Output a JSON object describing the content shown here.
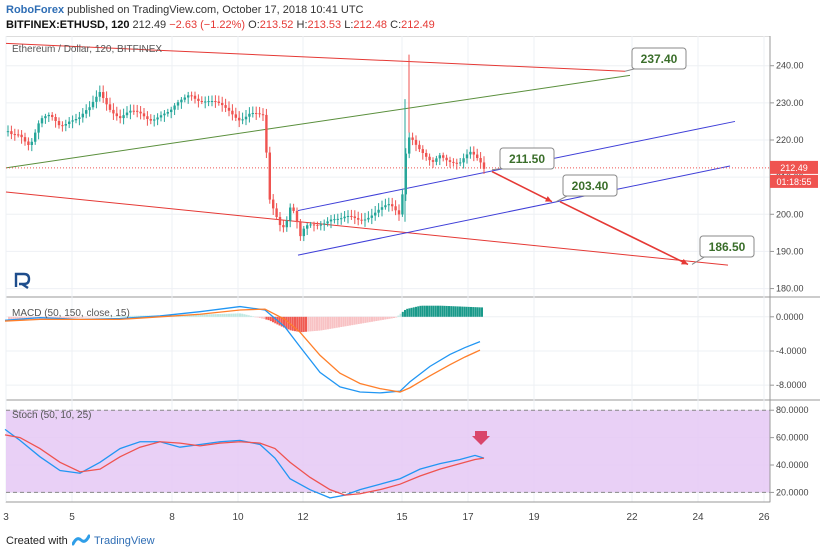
{
  "header": {
    "brand": "RoboForex",
    "published": "published on TradingView.com, October 17, 2018 10:41 UTC",
    "symbol": "BITFINEX:ETHUSD, 120",
    "last": "212.49",
    "change": "−2.63 (−1.22%)",
    "o_label": "O:",
    "o": "213.52",
    "h_label": "H:",
    "h": "213.53",
    "l_label": "L:",
    "l": "212.48",
    "c_label": "C:",
    "c": "212.49"
  },
  "footer": {
    "created_with": "Created with",
    "tradingview": "TradingView"
  },
  "colors": {
    "bull": "#26a69a",
    "bear": "#ef5350",
    "channel": "#3f3fd8",
    "resistance": "#e53935",
    "support_green": "#5a8f3c",
    "macd": "#2196f3",
    "signal": "#ff7f2a",
    "stoch_bg": "#e5c8f5"
  },
  "chart_data": [
    {
      "type": "candlestick",
      "title": "Ethereum / Dollar, 120, BITFINEX",
      "ylim": [
        178,
        248
      ],
      "y_ticks": [
        "240.00",
        "230.00",
        "220.00",
        "210.00",
        "200.00",
        "190.00",
        "180.00"
      ],
      "y_tick_values": [
        240,
        230,
        220,
        210,
        200,
        190,
        180
      ],
      "x_ticks": [
        "3",
        "5",
        "8",
        "10",
        "12",
        "15",
        "17",
        "19",
        "22",
        "24",
        "26"
      ],
      "current_price": "212.49",
      "countdown": "01:18:55",
      "close_path": [
        [
          0,
          224
        ],
        [
          10,
          221
        ],
        [
          20,
          222
        ],
        [
          30,
          219
        ],
        [
          40,
          225
        ],
        [
          50,
          226
        ],
        [
          60,
          224
        ],
        [
          70,
          226
        ],
        [
          80,
          226
        ],
        [
          90,
          228
        ],
        [
          100,
          233
        ],
        [
          110,
          229
        ],
        [
          120,
          226
        ],
        [
          130,
          227
        ],
        [
          140,
          227
        ],
        [
          150,
          226
        ],
        [
          160,
          227
        ],
        [
          170,
          227
        ],
        [
          180,
          230
        ],
        [
          190,
          233
        ],
        [
          200,
          231
        ],
        [
          210,
          230
        ],
        [
          220,
          229
        ],
        [
          230,
          228
        ],
        [
          240,
          226
        ],
        [
          250,
          227
        ],
        [
          260,
          226
        ],
        [
          265,
          226
        ],
        [
          268,
          205
        ],
        [
          275,
          201
        ],
        [
          280,
          198
        ],
        [
          285,
          197
        ],
        [
          290,
          202
        ],
        [
          295,
          200
        ],
        [
          300,
          193
        ],
        [
          305,
          196
        ],
        [
          310,
          197
        ],
        [
          320,
          198
        ],
        [
          330,
          199
        ],
        [
          340,
          198
        ],
        [
          350,
          199
        ],
        [
          360,
          199
        ],
        [
          370,
          200
        ],
        [
          380,
          201
        ],
        [
          390,
          202
        ],
        [
          400,
          200
        ],
        [
          404,
          210
        ],
        [
          407,
          222
        ],
        [
          412,
          221
        ],
        [
          418,
          218
        ],
        [
          425,
          215
        ],
        [
          432,
          213
        ],
        [
          440,
          216
        ],
        [
          450,
          215
        ],
        [
          460,
          214
        ],
        [
          470,
          216
        ],
        [
          480,
          214
        ],
        [
          484,
          212.5
        ]
      ],
      "annotations": [
        {
          "label": "237.40",
          "value": 237.4
        },
        {
          "label": "211.50",
          "value": 211.5
        },
        {
          "label": "203.40",
          "value": 203.4
        },
        {
          "label": "186.50",
          "value": 186.5
        }
      ]
    },
    {
      "type": "macd",
      "title": "MACD (50, 150, close, 15)",
      "ylim": [
        -9.5,
        2.2
      ],
      "y_ticks": [
        "0.0000",
        "-4.0000",
        "-8.0000"
      ],
      "y_tick_values": [
        0,
        -4,
        -8
      ],
      "macd": [
        [
          5,
          -0.4
        ],
        [
          40,
          -0.1
        ],
        [
          80,
          -0.3
        ],
        [
          120,
          -0.2
        ],
        [
          160,
          0.1
        ],
        [
          200,
          0.6
        ],
        [
          240,
          1.2
        ],
        [
          265,
          0.8
        ],
        [
          285,
          -1.2
        ],
        [
          300,
          -3.5
        ],
        [
          320,
          -6.5
        ],
        [
          340,
          -8.2
        ],
        [
          360,
          -8.8
        ],
        [
          380,
          -8.9
        ],
        [
          400,
          -8.7
        ],
        [
          410,
          -7.6
        ],
        [
          430,
          -5.8
        ],
        [
          450,
          -4.4
        ],
        [
          465,
          -3.6
        ],
        [
          480,
          -2.9
        ]
      ],
      "signal": [
        [
          5,
          -0.5
        ],
        [
          40,
          -0.3
        ],
        [
          80,
          -0.3
        ],
        [
          120,
          -0.3
        ],
        [
          160,
          0
        ],
        [
          200,
          0.3
        ],
        [
          240,
          0.8
        ],
        [
          265,
          0.9
        ],
        [
          285,
          -0.3
        ],
        [
          300,
          -1.8
        ],
        [
          320,
          -4.5
        ],
        [
          340,
          -6.6
        ],
        [
          360,
          -7.8
        ],
        [
          380,
          -8.4
        ],
        [
          400,
          -8.8
        ],
        [
          410,
          -8.3
        ],
        [
          430,
          -6.9
        ],
        [
          450,
          -5.6
        ],
        [
          465,
          -4.7
        ],
        [
          480,
          -3.9
        ]
      ],
      "histogram": [
        [
          10,
          -0.5
        ],
        [
          30,
          -0.4
        ],
        [
          60,
          -0.2
        ],
        [
          120,
          0.1
        ],
        [
          180,
          0.2
        ],
        [
          240,
          0.4
        ],
        [
          268,
          -0.4
        ],
        [
          280,
          -1.1
        ],
        [
          290,
          -1.6
        ],
        [
          300,
          -1.8
        ],
        [
          320,
          -1.6
        ],
        [
          340,
          -1.2
        ],
        [
          360,
          -0.8
        ],
        [
          380,
          -0.4
        ],
        [
          395,
          -0.1
        ],
        [
          405,
          0.9
        ],
        [
          420,
          1.3
        ],
        [
          440,
          1.3
        ],
        [
          460,
          1.2
        ],
        [
          480,
          1.1
        ]
      ]
    },
    {
      "type": "stochastic",
      "title": "Stoch (50, 10, 25)",
      "ylim": [
        13,
        86
      ],
      "y_ticks": [
        "80.0000",
        "60.0000",
        "40.0000",
        "20.0000"
      ],
      "y_tick_values": [
        80,
        60,
        40,
        20
      ],
      "band": [
        20,
        80
      ],
      "k": [
        [
          5,
          66
        ],
        [
          20,
          58
        ],
        [
          40,
          46
        ],
        [
          60,
          36
        ],
        [
          80,
          34
        ],
        [
          100,
          42
        ],
        [
          120,
          52
        ],
        [
          140,
          57
        ],
        [
          160,
          57
        ],
        [
          180,
          53
        ],
        [
          200,
          55
        ],
        [
          220,
          57
        ],
        [
          240,
          58
        ],
        [
          260,
          55
        ],
        [
          275,
          45
        ],
        [
          290,
          30
        ],
        [
          310,
          22
        ],
        [
          330,
          16
        ],
        [
          345,
          18
        ],
        [
          360,
          22
        ],
        [
          380,
          26
        ],
        [
          400,
          30
        ],
        [
          420,
          37
        ],
        [
          440,
          41
        ],
        [
          460,
          44
        ],
        [
          475,
          47
        ],
        [
          484,
          45
        ]
      ],
      "d": [
        [
          5,
          62
        ],
        [
          20,
          60
        ],
        [
          40,
          52
        ],
        [
          60,
          42
        ],
        [
          80,
          35
        ],
        [
          100,
          37
        ],
        [
          120,
          46
        ],
        [
          140,
          53
        ],
        [
          160,
          57
        ],
        [
          180,
          56
        ],
        [
          200,
          54
        ],
        [
          220,
          56
        ],
        [
          240,
          57
        ],
        [
          260,
          56
        ],
        [
          275,
          52
        ],
        [
          290,
          42
        ],
        [
          310,
          31
        ],
        [
          330,
          22
        ],
        [
          345,
          18
        ],
        [
          360,
          19
        ],
        [
          380,
          22
        ],
        [
          400,
          26
        ],
        [
          420,
          32
        ],
        [
          440,
          37
        ],
        [
          460,
          41
        ],
        [
          475,
          44
        ],
        [
          484,
          45
        ]
      ]
    }
  ]
}
